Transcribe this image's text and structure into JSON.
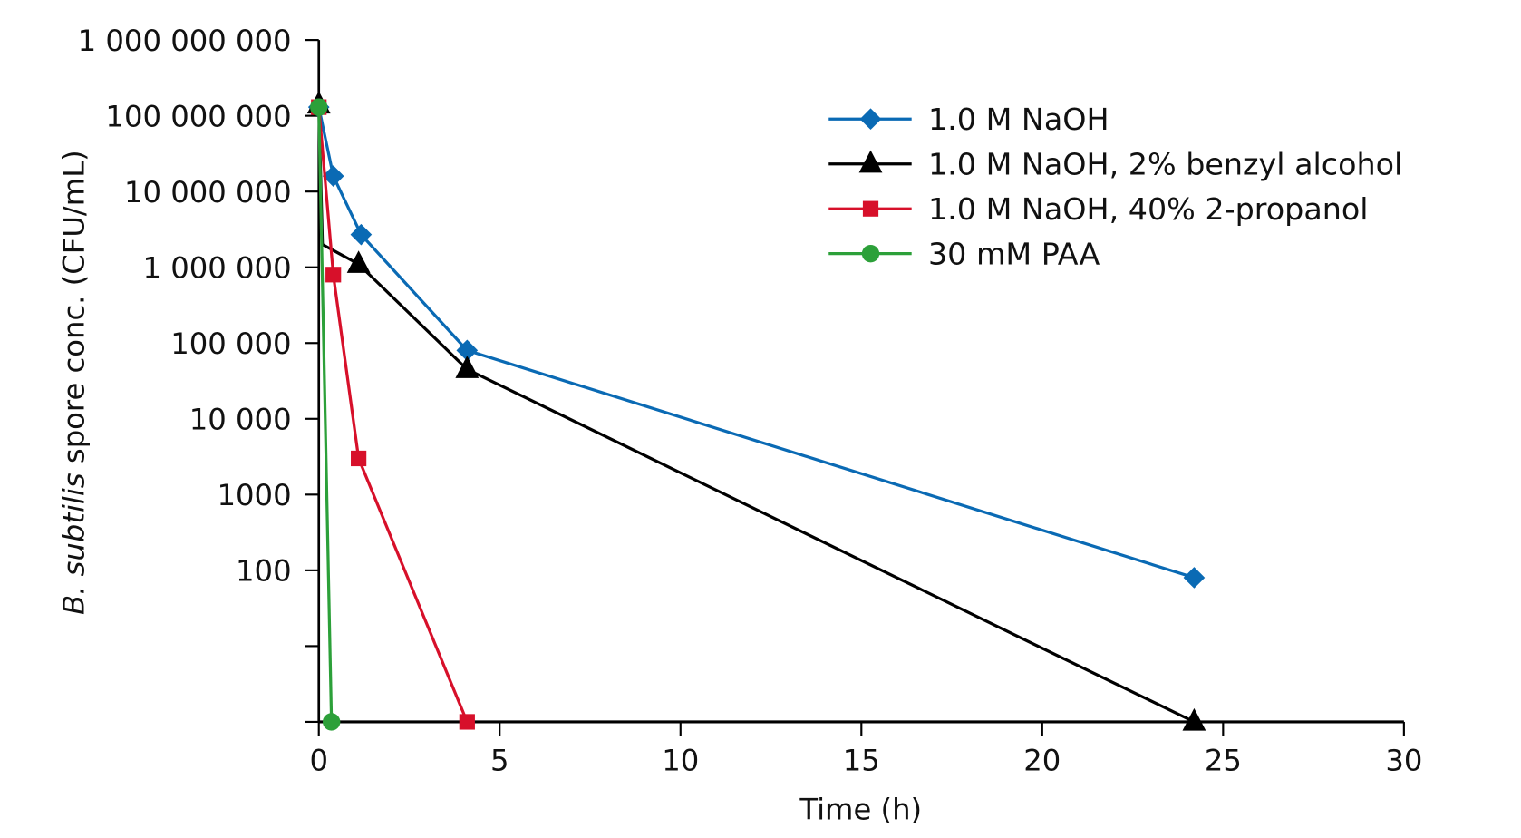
{
  "chart_data": {
    "type": "line",
    "xlabel": "Time (h)",
    "ylabel": {
      "italic": "B. subtilis",
      "rest": " spore conc. (CFU/mL)"
    },
    "xlim": [
      0,
      30
    ],
    "ylim": [
      1,
      1000000000
    ],
    "yscale": "log",
    "grid": false,
    "legend_position": "top-right",
    "x_ticks": [
      0,
      5,
      10,
      15,
      20,
      25,
      30
    ],
    "x_tick_labels": [
      "0",
      "5",
      "10",
      "15",
      "20",
      "25",
      "30"
    ],
    "y_ticks": [
      1000000000,
      100000000,
      10000000,
      1000000,
      100000,
      10000,
      1000,
      100,
      10,
      1
    ],
    "y_tick_labels": [
      "1 000 000 000",
      "100 000 000",
      "10 000 000",
      "1 000 000",
      "100 000",
      "10 000",
      "1000",
      "100",
      "",
      ""
    ],
    "series": [
      {
        "name": "1.0 M NaOH",
        "color": "#0a6ab4",
        "marker": "diamond",
        "x": [
          0,
          0.4,
          1.17,
          4.1,
          24.2
        ],
        "y": [
          130000000,
          16000000,
          2700000,
          80000,
          80
        ]
      },
      {
        "name": "1.0 M NaOH, 2% benzyl alcohol",
        "color": "#000000",
        "marker": "triangle",
        "x": [
          0,
          0.1,
          1.1,
          4.1,
          24.2
        ],
        "y": [
          140000000,
          2000000,
          1100000,
          45000,
          1
        ]
      },
      {
        "name": "1.0 M NaOH, 40% 2-propanol",
        "color": "#d7102a",
        "marker": "square",
        "x": [
          0,
          0.4,
          1.1,
          4.1
        ],
        "y": [
          130000000,
          800000,
          3000,
          1
        ]
      },
      {
        "name": "30 mM PAA",
        "color": "#2ca039",
        "marker": "circle",
        "x": [
          0,
          0.35
        ],
        "y": [
          130000000,
          1
        ]
      }
    ]
  }
}
